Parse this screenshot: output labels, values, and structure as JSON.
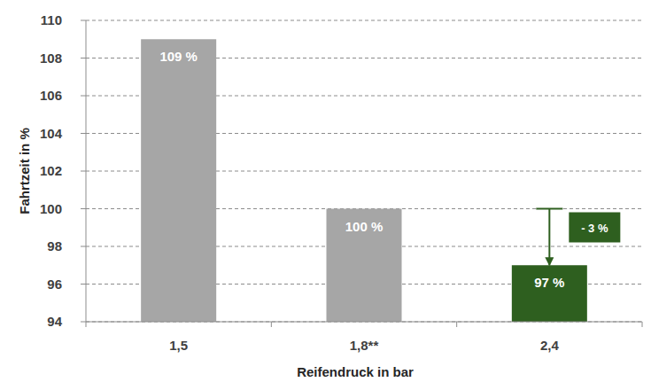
{
  "chart_data": {
    "type": "bar",
    "x_label": "Reifendruck in bar",
    "y_label": "Fahrtzeit in %",
    "categories": [
      "1,5",
      "1,8**",
      "2,4"
    ],
    "values": [
      109,
      100,
      97
    ],
    "value_labels": [
      "109 %",
      "100 %",
      "97 %"
    ],
    "colors": [
      "#a6a6a6",
      "#a6a6a6",
      "#2e5f1f"
    ],
    "ylim": [
      94,
      110
    ],
    "yticks": [
      94,
      96,
      98,
      100,
      102,
      104,
      106,
      108,
      110
    ],
    "grid": true,
    "data_labels": true,
    "annotations": [
      {
        "text": "- 3 %",
        "category": "2,4",
        "from": 100,
        "to": 97
      }
    ]
  }
}
